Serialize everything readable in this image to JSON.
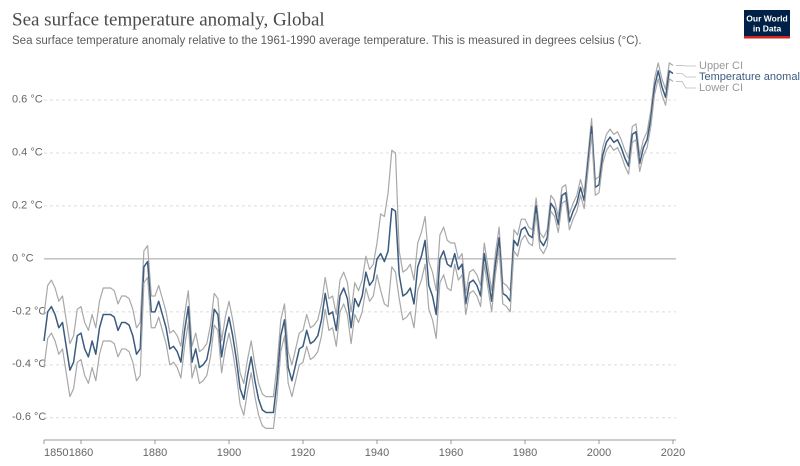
{
  "chart_data": {
    "type": "line",
    "title": "Sea surface temperature anomaly, Global",
    "subtitle": "Sea surface temperature anomaly relative to the 1961-1990 average temperature. This is measured in degrees celsius (°C).",
    "logo": [
      "Our World",
      "in Data"
    ],
    "x": [
      1850,
      1851,
      1852,
      1853,
      1854,
      1855,
      1856,
      1857,
      1858,
      1859,
      1860,
      1861,
      1862,
      1863,
      1864,
      1865,
      1866,
      1867,
      1868,
      1869,
      1870,
      1871,
      1872,
      1873,
      1874,
      1875,
      1876,
      1877,
      1878,
      1879,
      1880,
      1881,
      1882,
      1883,
      1884,
      1885,
      1886,
      1887,
      1888,
      1889,
      1890,
      1891,
      1892,
      1893,
      1894,
      1895,
      1896,
      1897,
      1898,
      1899,
      1900,
      1901,
      1902,
      1903,
      1904,
      1905,
      1906,
      1907,
      1908,
      1909,
      1910,
      1911,
      1912,
      1913,
      1914,
      1915,
      1916,
      1917,
      1918,
      1919,
      1920,
      1921,
      1922,
      1923,
      1924,
      1925,
      1926,
      1927,
      1928,
      1929,
      1930,
      1931,
      1932,
      1933,
      1934,
      1935,
      1936,
      1937,
      1938,
      1939,
      1940,
      1941,
      1942,
      1943,
      1944,
      1945,
      1946,
      1947,
      1948,
      1949,
      1950,
      1951,
      1952,
      1953,
      1954,
      1955,
      1956,
      1957,
      1958,
      1959,
      1960,
      1961,
      1962,
      1963,
      1964,
      1965,
      1966,
      1967,
      1968,
      1969,
      1970,
      1971,
      1972,
      1973,
      1974,
      1975,
      1976,
      1977,
      1978,
      1979,
      1980,
      1981,
      1982,
      1983,
      1984,
      1985,
      1986,
      1987,
      1988,
      1989,
      1990,
      1991,
      1992,
      1993,
      1994,
      1995,
      1996,
      1997,
      1998,
      1999,
      2000,
      2001,
      2002,
      2003,
      2004,
      2005,
      2006,
      2007,
      2008,
      2009,
      2010,
      2011,
      2012,
      2013,
      2014,
      2015,
      2016,
      2017,
      2018,
      2019,
      2020
    ],
    "series": [
      {
        "name": "Upper CI",
        "color": "#a8a8a8",
        "values": [
          -0.21,
          -0.1,
          -0.08,
          -0.11,
          -0.16,
          -0.14,
          -0.23,
          -0.32,
          -0.29,
          -0.19,
          -0.18,
          -0.24,
          -0.27,
          -0.21,
          -0.26,
          -0.16,
          -0.11,
          -0.11,
          -0.11,
          -0.12,
          -0.17,
          -0.14,
          -0.14,
          -0.15,
          -0.19,
          -0.26,
          -0.24,
          0.03,
          0.05,
          -0.14,
          -0.14,
          -0.1,
          -0.15,
          -0.2,
          -0.28,
          -0.27,
          -0.29,
          -0.33,
          -0.21,
          -0.12,
          -0.33,
          -0.28,
          -0.35,
          -0.34,
          -0.32,
          -0.25,
          -0.13,
          -0.15,
          -0.31,
          -0.22,
          -0.16,
          -0.23,
          -0.32,
          -0.43,
          -0.47,
          -0.38,
          -0.31,
          -0.4,
          -0.47,
          -0.51,
          -0.52,
          -0.52,
          -0.52,
          -0.4,
          -0.23,
          -0.17,
          -0.35,
          -0.4,
          -0.34,
          -0.28,
          -0.27,
          -0.21,
          -0.26,
          -0.25,
          -0.23,
          -0.17,
          -0.07,
          -0.15,
          -0.14,
          -0.21,
          -0.08,
          -0.05,
          -0.09,
          -0.2,
          -0.09,
          -0.12,
          -0.08,
          0.01,
          -0.04,
          -0.02,
          0.06,
          0.17,
          0.16,
          0.25,
          0.41,
          0.4,
          0.03,
          -0.05,
          -0.04,
          -0.02,
          -0.08,
          0.06,
          0.1,
          0.16,
          -0.01,
          -0.05,
          -0.12,
          0.09,
          0.12,
          0.07,
          0.06,
          0.06,
          0,
          0.02,
          -0.13,
          -0.05,
          -0.04,
          -0.06,
          -0.1,
          0.06,
          -0.03,
          -0.12,
          0.02,
          0.12,
          -0.09,
          -0.1,
          -0.12,
          0.11,
          0.09,
          0.15,
          0.15,
          0.12,
          0.11,
          0.23,
          0.1,
          0.08,
          0.11,
          0.24,
          0.22,
          0.16,
          0.27,
          0.28,
          0.17,
          0.21,
          0.24,
          0.3,
          0.25,
          0.39,
          0.53,
          0.3,
          0.31,
          0.42,
          0.47,
          0.49,
          0.47,
          0.48,
          0.45,
          0.41,
          0.38,
          0.5,
          0.51,
          0.39,
          0.45,
          0.48,
          0.56,
          0.68,
          0.74,
          0.68,
          0.64,
          0.74,
          0.73
        ]
      },
      {
        "name": "Temperature anomaly",
        "color": "#3b5b7f",
        "values": [
          -0.31,
          -0.2,
          -0.18,
          -0.21,
          -0.26,
          -0.24,
          -0.33,
          -0.42,
          -0.39,
          -0.29,
          -0.28,
          -0.34,
          -0.37,
          -0.31,
          -0.36,
          -0.26,
          -0.21,
          -0.21,
          -0.21,
          -0.22,
          -0.27,
          -0.24,
          -0.24,
          -0.25,
          -0.29,
          -0.36,
          -0.34,
          -0.03,
          -0.01,
          -0.2,
          -0.2,
          -0.16,
          -0.21,
          -0.26,
          -0.34,
          -0.33,
          -0.35,
          -0.39,
          -0.27,
          -0.18,
          -0.39,
          -0.34,
          -0.41,
          -0.4,
          -0.38,
          -0.31,
          -0.19,
          -0.21,
          -0.37,
          -0.28,
          -0.22,
          -0.29,
          -0.38,
          -0.49,
          -0.53,
          -0.44,
          -0.37,
          -0.46,
          -0.53,
          -0.57,
          -0.58,
          -0.58,
          -0.58,
          -0.46,
          -0.29,
          -0.23,
          -0.41,
          -0.46,
          -0.4,
          -0.34,
          -0.33,
          -0.27,
          -0.32,
          -0.31,
          -0.29,
          -0.23,
          -0.13,
          -0.21,
          -0.2,
          -0.27,
          -0.14,
          -0.11,
          -0.15,
          -0.26,
          -0.15,
          -0.18,
          -0.14,
          -0.05,
          -0.1,
          -0.08,
          0,
          0.02,
          -0.01,
          0.03,
          0.19,
          0.18,
          -0.06,
          -0.14,
          -0.13,
          -0.11,
          -0.17,
          -0.03,
          0.01,
          0.07,
          -0.1,
          -0.14,
          -0.21,
          0,
          0.03,
          -0.02,
          -0.03,
          0.02,
          -0.04,
          -0.02,
          -0.17,
          -0.09,
          -0.08,
          -0.1,
          -0.14,
          0.02,
          -0.07,
          -0.16,
          -0.02,
          0.08,
          -0.13,
          -0.14,
          -0.16,
          0.07,
          0.05,
          0.11,
          0.12,
          0.09,
          0.08,
          0.2,
          0.07,
          0.05,
          0.08,
          0.21,
          0.19,
          0.13,
          0.24,
          0.25,
          0.14,
          0.18,
          0.21,
          0.27,
          0.22,
          0.36,
          0.5,
          0.27,
          0.28,
          0.39,
          0.44,
          0.46,
          0.44,
          0.45,
          0.42,
          0.38,
          0.35,
          0.47,
          0.48,
          0.36,
          0.42,
          0.45,
          0.53,
          0.65,
          0.71,
          0.65,
          0.61,
          0.71,
          0.7
        ]
      },
      {
        "name": "Lower CI",
        "color": "#a8a8a8",
        "values": [
          -0.41,
          -0.3,
          -0.28,
          -0.31,
          -0.36,
          -0.34,
          -0.43,
          -0.52,
          -0.49,
          -0.39,
          -0.38,
          -0.44,
          -0.47,
          -0.41,
          -0.46,
          -0.36,
          -0.31,
          -0.31,
          -0.31,
          -0.32,
          -0.37,
          -0.34,
          -0.34,
          -0.35,
          -0.39,
          -0.46,
          -0.44,
          -0.09,
          -0.07,
          -0.26,
          -0.26,
          -0.22,
          -0.27,
          -0.32,
          -0.4,
          -0.39,
          -0.41,
          -0.45,
          -0.33,
          -0.24,
          -0.45,
          -0.4,
          -0.47,
          -0.46,
          -0.44,
          -0.37,
          -0.25,
          -0.27,
          -0.43,
          -0.34,
          -0.28,
          -0.35,
          -0.44,
          -0.55,
          -0.59,
          -0.5,
          -0.43,
          -0.52,
          -0.59,
          -0.63,
          -0.64,
          -0.64,
          -0.64,
          -0.52,
          -0.35,
          -0.29,
          -0.47,
          -0.52,
          -0.46,
          -0.4,
          -0.39,
          -0.33,
          -0.38,
          -0.37,
          -0.35,
          -0.29,
          -0.19,
          -0.27,
          -0.26,
          -0.33,
          -0.2,
          -0.17,
          -0.21,
          -0.32,
          -0.21,
          -0.24,
          -0.2,
          -0.11,
          -0.16,
          -0.14,
          -0.06,
          -0.12,
          -0.17,
          -0.18,
          -0.03,
          -0.05,
          -0.15,
          -0.23,
          -0.22,
          -0.2,
          -0.26,
          -0.12,
          -0.08,
          -0.02,
          -0.19,
          -0.23,
          -0.3,
          -0.09,
          -0.06,
          -0.11,
          -0.12,
          -0.02,
          -0.08,
          -0.06,
          -0.21,
          -0.13,
          -0.12,
          -0.14,
          -0.18,
          -0.02,
          -0.11,
          -0.2,
          -0.06,
          0.04,
          -0.17,
          -0.18,
          -0.2,
          0.03,
          0.01,
          0.07,
          0.09,
          0.06,
          0.05,
          0.17,
          0.04,
          0.02,
          0.05,
          0.18,
          0.16,
          0.1,
          0.21,
          0.22,
          0.11,
          0.15,
          0.18,
          0.24,
          0.19,
          0.33,
          0.47,
          0.24,
          0.25,
          0.36,
          0.41,
          0.43,
          0.41,
          0.42,
          0.39,
          0.35,
          0.32,
          0.44,
          0.45,
          0.33,
          0.39,
          0.42,
          0.5,
          0.62,
          0.68,
          0.62,
          0.58,
          0.68,
          0.67
        ]
      }
    ],
    "xlim": [
      1850,
      2020
    ],
    "xticks": [
      1850,
      1860,
      1880,
      1900,
      1920,
      1940,
      1960,
      1980,
      2000,
      2020
    ],
    "ylim": [
      -0.68,
      0.76
    ],
    "yticks": [
      {
        "value": -0.6,
        "label": "-0.6 °C"
      },
      {
        "value": -0.4,
        "label": "-0.4 °C"
      },
      {
        "value": -0.2,
        "label": "-0.2 °C"
      },
      {
        "value": 0,
        "label": "0 °C"
      },
      {
        "value": 0.2,
        "label": "0.2 °C"
      },
      {
        "value": 0.4,
        "label": "0.4 °C"
      },
      {
        "value": 0.6,
        "label": "0.6 °C"
      }
    ],
    "grid": true
  }
}
